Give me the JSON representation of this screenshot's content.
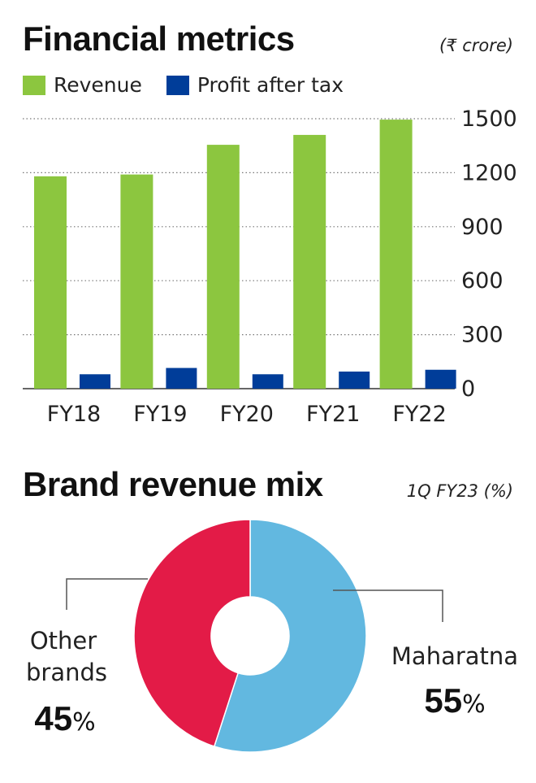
{
  "chart_data": [
    {
      "type": "bar",
      "title": "Financial metrics",
      "unit": "(₹ crore)",
      "categories": [
        "FY18",
        "FY19",
        "FY20",
        "FY21",
        "FY22"
      ],
      "series": [
        {
          "name": "Revenue",
          "color": "#8cc63f",
          "values": [
            1180,
            1190,
            1355,
            1410,
            1495
          ]
        },
        {
          "name": "Profit after tax",
          "color": "#003d99",
          "values": [
            80,
            115,
            80,
            95,
            105
          ]
        }
      ],
      "yticks": [
        "0",
        "300",
        "600",
        "900",
        "1200",
        "1500"
      ],
      "ylim": [
        0,
        1500
      ],
      "grid": true,
      "legend_position": "top-left"
    },
    {
      "type": "pie",
      "title": "Brand revenue mix",
      "subtitle": "1Q FY23 (%)",
      "slices": [
        {
          "label": "Maharatna",
          "value": 55,
          "value_label": "55",
          "color": "#62b8e0"
        },
        {
          "label": "Other brands",
          "value": 45,
          "value_label": "45",
          "color": "#e31b47"
        }
      ],
      "percent_sign": "%"
    }
  ]
}
